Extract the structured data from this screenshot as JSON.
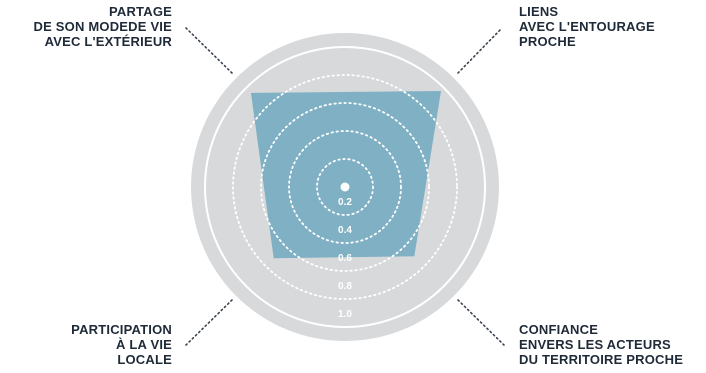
{
  "chart_data": {
    "type": "radar",
    "axes": [
      {
        "name": "PARTAGE DE SON MODEDE VIE AVEC L'EXTÉRIEUR",
        "lines": [
          "PARTAGE",
          "DE SON MODEDE VIE",
          "AVEC L'EXTÉRIEUR"
        ]
      },
      {
        "name": "LIENS AVEC L'ENTOURAGE PROCHE",
        "lines": [
          "LIENS",
          "AVEC L'ENTOURAGE",
          "PROCHE"
        ]
      },
      {
        "name": "CONFIANCE ENVERS LES ACTEURS DU TERRITOIRE PROCHE",
        "lines": [
          "CONFIANCE",
          "ENVERS LES ACTEURS",
          "DU TERRITOIRE PROCHE"
        ]
      },
      {
        "name": "PARTICIPATION À LA VIE LOCALE",
        "lines": [
          "PARTICIPATION",
          "À LA VIE",
          "LOCALE"
        ]
      }
    ],
    "values": [
      0.95,
      0.97,
      0.7,
      0.72
    ],
    "scale_ticks": [
      "0.2",
      "0.4",
      "0.6",
      "0.8",
      "1.0"
    ],
    "range": [
      0,
      1.1
    ],
    "colors": {
      "fill": "#7fb0c4",
      "outer_disc": "#d7d9db",
      "ring_line": "#ffffff",
      "leader": "#3a4350",
      "text": "#1f2a38"
    }
  }
}
